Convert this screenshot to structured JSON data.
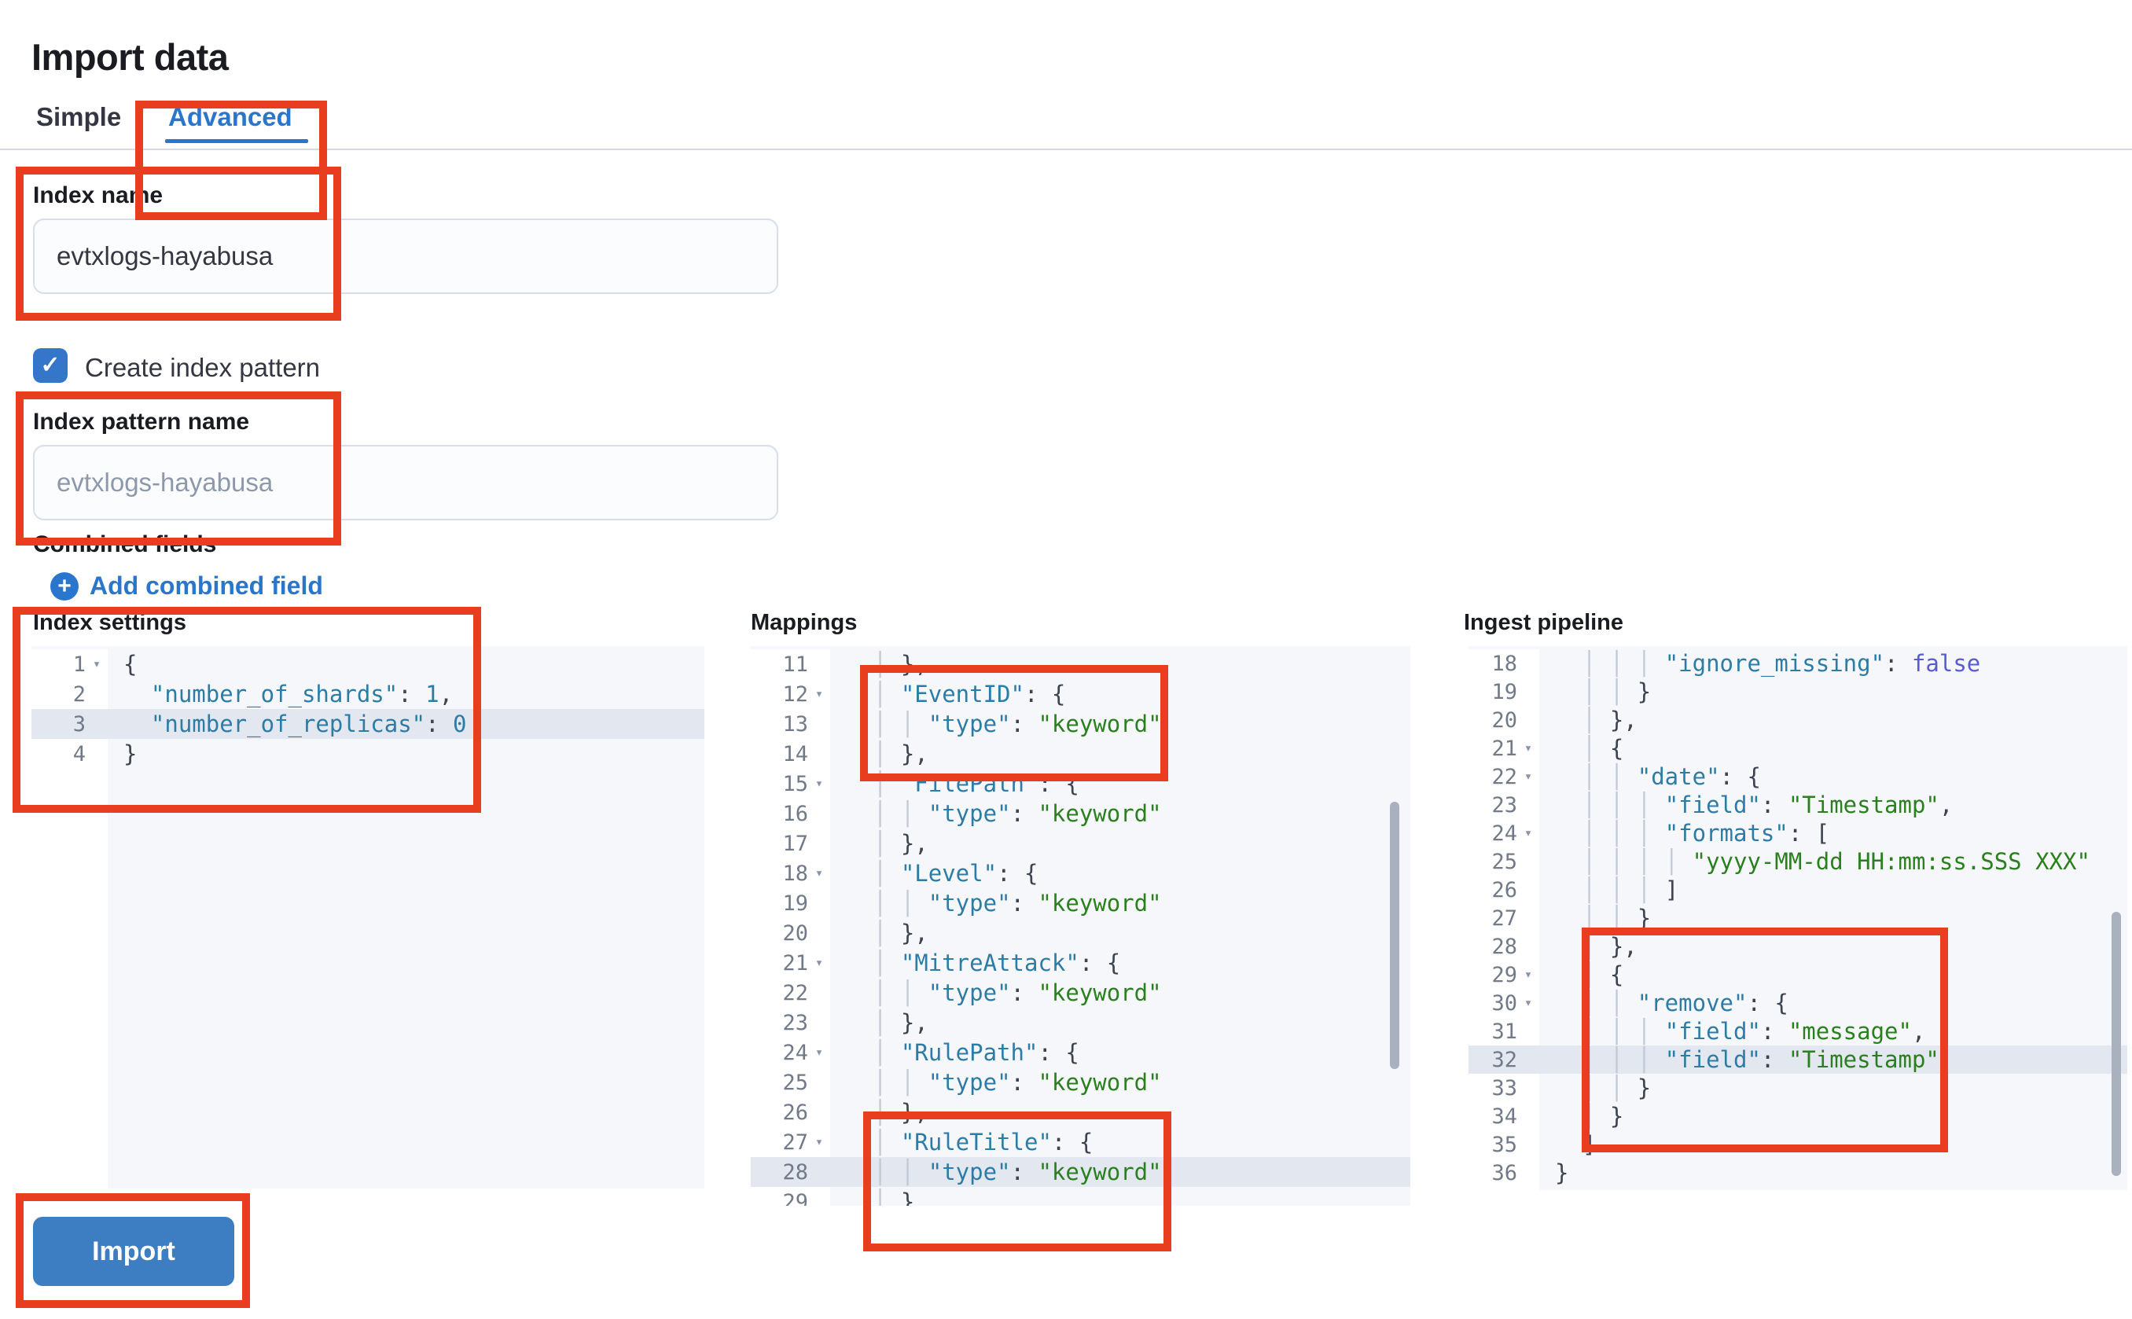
{
  "colors": {
    "primary": "#2b76cd",
    "button": "#3d7dc2",
    "checkbox": "#3576cb",
    "annotation": "#e93d20",
    "code_key": "#2d7ca6",
    "code_string": "#2a7f1e",
    "code_constant": "#5a5ad1"
  },
  "ui": {
    "fold_glyph": "▾"
  },
  "page": {
    "title": "Import data"
  },
  "tabs": [
    {
      "label": "Simple",
      "active": false
    },
    {
      "label": "Advanced",
      "active": true
    }
  ],
  "form": {
    "index_name": {
      "label": "Index name",
      "value": "evtxlogs-hayabusa"
    },
    "create_index_pattern": {
      "label": "Create index pattern",
      "checked": true,
      "check_glyph": "✓"
    },
    "index_pattern_name": {
      "label": "Index pattern name",
      "placeholder": "evtxlogs-hayabusa"
    },
    "combined_fields_label": "Combined fields",
    "add_combined_field": {
      "label": "Add combined field",
      "plus_glyph": "+"
    }
  },
  "editors": [
    {
      "label": "Index settings",
      "lines": [
        {
          "n": 1,
          "fold": true,
          "active": false,
          "t": [
            [
              "p",
              "{"
            ]
          ]
        },
        {
          "n": 2,
          "fold": false,
          "active": false,
          "t": [
            [
              "p",
              "  "
            ],
            [
              "k",
              "\"number_of_shards\""
            ],
            [
              "p",
              ": "
            ],
            [
              "n",
              "1"
            ],
            [
              "p",
              ","
            ]
          ]
        },
        {
          "n": 3,
          "fold": false,
          "active": true,
          "t": [
            [
              "p",
              "  "
            ],
            [
              "k",
              "\"number_of_replicas\""
            ],
            [
              "p",
              ": "
            ],
            [
              "n",
              "0"
            ]
          ]
        },
        {
          "n": 4,
          "fold": false,
          "active": false,
          "t": [
            [
              "p",
              "}"
            ]
          ]
        }
      ]
    },
    {
      "label": "Mappings",
      "lines": [
        {
          "n": 11,
          "fold": false,
          "active": false,
          "t": [
            [
              "g",
              "  │ "
            ],
            [
              "p",
              "},"
            ]
          ]
        },
        {
          "n": 12,
          "fold": true,
          "active": false,
          "t": [
            [
              "g",
              "  │ "
            ],
            [
              "k",
              "\"EventID\""
            ],
            [
              "p",
              ": {"
            ]
          ]
        },
        {
          "n": 13,
          "fold": false,
          "active": false,
          "t": [
            [
              "g",
              "  │ │ "
            ],
            [
              "k",
              "\"type\""
            ],
            [
              "p",
              ": "
            ],
            [
              "s",
              "\"keyword\""
            ]
          ]
        },
        {
          "n": 14,
          "fold": false,
          "active": false,
          "t": [
            [
              "g",
              "  │ "
            ],
            [
              "p",
              "},"
            ]
          ]
        },
        {
          "n": 15,
          "fold": true,
          "active": false,
          "t": [
            [
              "g",
              "  │ "
            ],
            [
              "k",
              "\"FilePath\""
            ],
            [
              "p",
              ": {"
            ]
          ]
        },
        {
          "n": 16,
          "fold": false,
          "active": false,
          "t": [
            [
              "g",
              "  │ │ "
            ],
            [
              "k",
              "\"type\""
            ],
            [
              "p",
              ": "
            ],
            [
              "s",
              "\"keyword\""
            ]
          ]
        },
        {
          "n": 17,
          "fold": false,
          "active": false,
          "t": [
            [
              "g",
              "  │ "
            ],
            [
              "p",
              "},"
            ]
          ]
        },
        {
          "n": 18,
          "fold": true,
          "active": false,
          "t": [
            [
              "g",
              "  │ "
            ],
            [
              "k",
              "\"Level\""
            ],
            [
              "p",
              ": {"
            ]
          ]
        },
        {
          "n": 19,
          "fold": false,
          "active": false,
          "t": [
            [
              "g",
              "  │ │ "
            ],
            [
              "k",
              "\"type\""
            ],
            [
              "p",
              ": "
            ],
            [
              "s",
              "\"keyword\""
            ]
          ]
        },
        {
          "n": 20,
          "fold": false,
          "active": false,
          "t": [
            [
              "g",
              "  │ "
            ],
            [
              "p",
              "},"
            ]
          ]
        },
        {
          "n": 21,
          "fold": true,
          "active": false,
          "t": [
            [
              "g",
              "  │ "
            ],
            [
              "k",
              "\"MitreAttack\""
            ],
            [
              "p",
              ": {"
            ]
          ]
        },
        {
          "n": 22,
          "fold": false,
          "active": false,
          "t": [
            [
              "g",
              "  │ │ "
            ],
            [
              "k",
              "\"type\""
            ],
            [
              "p",
              ": "
            ],
            [
              "s",
              "\"keyword\""
            ]
          ]
        },
        {
          "n": 23,
          "fold": false,
          "active": false,
          "t": [
            [
              "g",
              "  │ "
            ],
            [
              "p",
              "},"
            ]
          ]
        },
        {
          "n": 24,
          "fold": true,
          "active": false,
          "t": [
            [
              "g",
              "  │ "
            ],
            [
              "k",
              "\"RulePath\""
            ],
            [
              "p",
              ": {"
            ]
          ]
        },
        {
          "n": 25,
          "fold": false,
          "active": false,
          "t": [
            [
              "g",
              "  │ │ "
            ],
            [
              "k",
              "\"type\""
            ],
            [
              "p",
              ": "
            ],
            [
              "s",
              "\"keyword\""
            ]
          ]
        },
        {
          "n": 26,
          "fold": false,
          "active": false,
          "t": [
            [
              "g",
              "  │ "
            ],
            [
              "p",
              "},"
            ]
          ]
        },
        {
          "n": 27,
          "fold": true,
          "active": false,
          "t": [
            [
              "g",
              "  │ "
            ],
            [
              "k",
              "\"RuleTitle\""
            ],
            [
              "p",
              ": {"
            ]
          ]
        },
        {
          "n": 28,
          "fold": false,
          "active": true,
          "t": [
            [
              "g",
              "  │ │ "
            ],
            [
              "k",
              "\"type\""
            ],
            [
              "p",
              ": "
            ],
            [
              "s",
              "\"keyword\""
            ]
          ]
        },
        {
          "n": 29,
          "fold": false,
          "active": false,
          "t": [
            [
              "g",
              "  │ "
            ],
            [
              "p",
              "},"
            ]
          ]
        }
      ]
    },
    {
      "label": "Ingest pipeline",
      "lines": [
        {
          "n": 18,
          "fold": false,
          "active": false,
          "t": [
            [
              "g",
              "  │ │ │ "
            ],
            [
              "k",
              "\"ignore_missing\""
            ],
            [
              "p",
              ": "
            ],
            [
              "c",
              "false"
            ]
          ]
        },
        {
          "n": 19,
          "fold": false,
          "active": false,
          "t": [
            [
              "g",
              "  │ │ "
            ],
            [
              "p",
              "}"
            ]
          ]
        },
        {
          "n": 20,
          "fold": false,
          "active": false,
          "t": [
            [
              "g",
              "  │ "
            ],
            [
              "p",
              "},"
            ]
          ]
        },
        {
          "n": 21,
          "fold": true,
          "active": false,
          "t": [
            [
              "g",
              "  │ "
            ],
            [
              "p",
              "{"
            ]
          ]
        },
        {
          "n": 22,
          "fold": true,
          "active": false,
          "t": [
            [
              "g",
              "  │ │ "
            ],
            [
              "k",
              "\"date\""
            ],
            [
              "p",
              ": {"
            ]
          ]
        },
        {
          "n": 23,
          "fold": false,
          "active": false,
          "t": [
            [
              "g",
              "  │ │ │ "
            ],
            [
              "k",
              "\"field\""
            ],
            [
              "p",
              ": "
            ],
            [
              "s",
              "\"Timestamp\""
            ],
            [
              "p",
              ","
            ]
          ]
        },
        {
          "n": 24,
          "fold": true,
          "active": false,
          "t": [
            [
              "g",
              "  │ │ │ "
            ],
            [
              "k",
              "\"formats\""
            ],
            [
              "p",
              ": ["
            ]
          ]
        },
        {
          "n": 25,
          "fold": false,
          "active": false,
          "t": [
            [
              "g",
              "  │ │ │ │ "
            ],
            [
              "s",
              "\"yyyy-MM-dd HH:mm:ss.SSS XXX\""
            ]
          ]
        },
        {
          "n": 26,
          "fold": false,
          "active": false,
          "t": [
            [
              "g",
              "  │ │ │ "
            ],
            [
              "p",
              "]"
            ]
          ]
        },
        {
          "n": 27,
          "fold": false,
          "active": false,
          "t": [
            [
              "g",
              "  │ │ "
            ],
            [
              "p",
              "}"
            ]
          ]
        },
        {
          "n": 28,
          "fold": false,
          "active": false,
          "t": [
            [
              "g",
              "  │ "
            ],
            [
              "p",
              "},"
            ]
          ]
        },
        {
          "n": 29,
          "fold": true,
          "active": false,
          "t": [
            [
              "g",
              "  │ "
            ],
            [
              "p",
              "{"
            ]
          ]
        },
        {
          "n": 30,
          "fold": true,
          "active": false,
          "t": [
            [
              "g",
              "  │ │ "
            ],
            [
              "k",
              "\"remove\""
            ],
            [
              "p",
              ": {"
            ]
          ]
        },
        {
          "n": 31,
          "fold": false,
          "active": false,
          "t": [
            [
              "g",
              "  │ │ │ "
            ],
            [
              "k",
              "\"field\""
            ],
            [
              "p",
              ": "
            ],
            [
              "s",
              "\"message\""
            ],
            [
              "p",
              ","
            ]
          ]
        },
        {
          "n": 32,
          "fold": false,
          "active": true,
          "t": [
            [
              "g",
              "  │ │ │ "
            ],
            [
              "k",
              "\"field\""
            ],
            [
              "p",
              ": "
            ],
            [
              "s",
              "\"Timestamp\""
            ]
          ]
        },
        {
          "n": 33,
          "fold": false,
          "active": false,
          "t": [
            [
              "g",
              "  │ │ "
            ],
            [
              "p",
              "}"
            ]
          ]
        },
        {
          "n": 34,
          "fold": false,
          "active": false,
          "t": [
            [
              "g",
              "  │ "
            ],
            [
              "p",
              "}"
            ]
          ]
        },
        {
          "n": 35,
          "fold": false,
          "active": false,
          "t": [
            [
              "g",
              "  "
            ],
            [
              "p",
              "]"
            ]
          ]
        },
        {
          "n": 36,
          "fold": false,
          "active": false,
          "t": [
            [
              "p",
              "}"
            ]
          ]
        }
      ]
    }
  ],
  "import_button": {
    "label": "Import"
  },
  "annotations": [
    "advanced-tab",
    "index-name-field",
    "index-pattern-name-field",
    "index-settings-editor",
    "mappings-eventid-block",
    "mappings-ruletitle-block",
    "ingest-remove-block",
    "import-button"
  ]
}
